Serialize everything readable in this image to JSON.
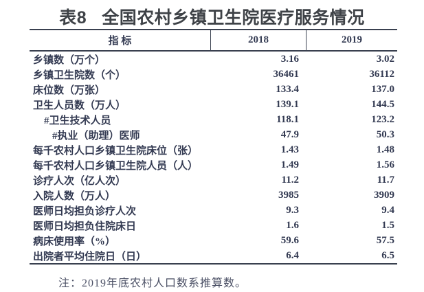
{
  "title": {
    "number": "表8",
    "text": "全国农村乡镇卫生院医疗服务情况"
  },
  "table": {
    "headers": [
      "指 标",
      "2018",
      "2019"
    ],
    "rows": [
      {
        "label": "乡镇数（万个）",
        "indent": 0,
        "y2018": "3.16",
        "y2019": "3.02"
      },
      {
        "label": "乡镇卫生院数（个）",
        "indent": 0,
        "y2018": "36461",
        "y2019": "36112"
      },
      {
        "label": "床位数（万张）",
        "indent": 0,
        "y2018": "133.4",
        "y2019": "137.0"
      },
      {
        "label": "卫生人员数（万人）",
        "indent": 0,
        "y2018": "139.1",
        "y2019": "144.5"
      },
      {
        "label": "#卫生技术人员",
        "indent": 1,
        "y2018": "118.1",
        "y2019": "123.2"
      },
      {
        "label": "#执业（助理）医师",
        "indent": 2,
        "y2018": "47.9",
        "y2019": "50.3"
      },
      {
        "label": "每千农村人口乡镇卫生院床位（张）",
        "indent": 0,
        "y2018": "1.43",
        "y2019": "1.48"
      },
      {
        "label": "每千农村人口乡镇卫生院人员（人）",
        "indent": 0,
        "y2018": "1.49",
        "y2019": "1.56"
      },
      {
        "label": "诊疗人次（亿人次）",
        "indent": 0,
        "y2018": "11.2",
        "y2019": "11.7"
      },
      {
        "label": "入院人数（万人）",
        "indent": 0,
        "y2018": "3985",
        "y2019": "3909"
      },
      {
        "label": "医师日均担负诊疗人次",
        "indent": 0,
        "y2018": "9.3",
        "y2019": "9.4"
      },
      {
        "label": "医师日均担负住院床日",
        "indent": 0,
        "y2018": "1.6",
        "y2019": "1.5"
      },
      {
        "label": "病床使用率（%）",
        "indent": 0,
        "y2018": "59.6",
        "y2019": "57.5"
      },
      {
        "label": "出院者平均住院日（日）",
        "indent": 0,
        "y2018": "6.4",
        "y2019": "6.5"
      }
    ]
  },
  "note": "注：2019年底农村人口数系推算数。",
  "colors": {
    "background": "#ffffff",
    "title_text": "#3e4247",
    "table_text": "#333a52",
    "border": "#39404f",
    "note_text": "#4c5166"
  }
}
